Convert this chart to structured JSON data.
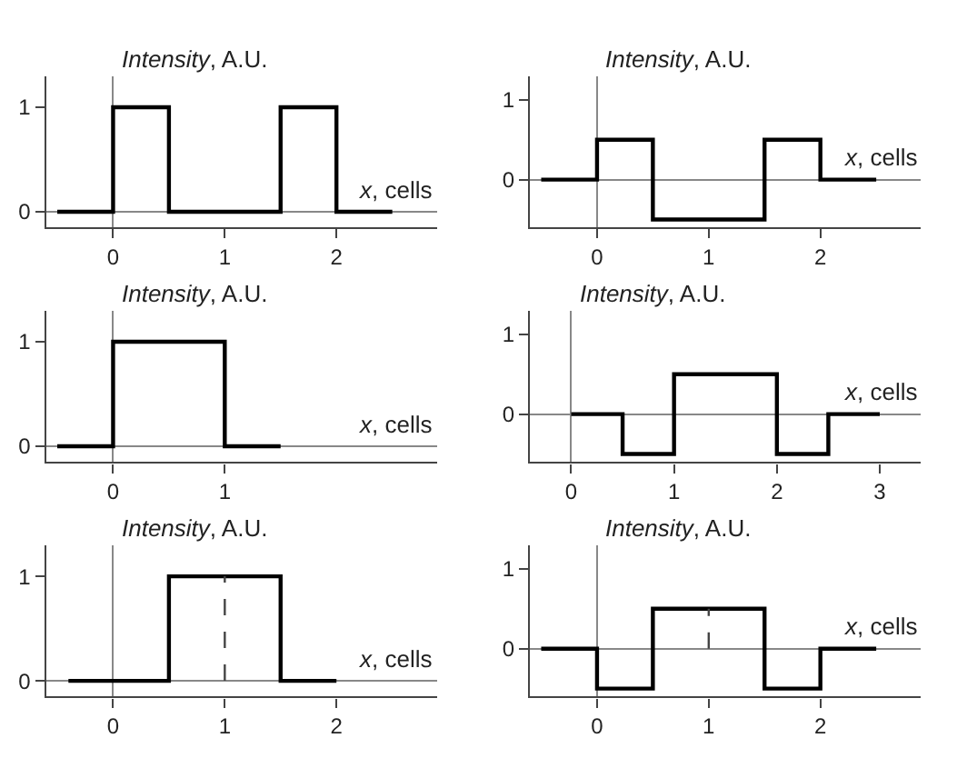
{
  "chart_data": [
    {
      "type": "step",
      "xlabel": "x, cells",
      "ylabel": "Intensity, A.U.",
      "x": [
        -0.5,
        0,
        0.5,
        1.5,
        2,
        2.5
      ],
      "values": [
        0,
        1,
        0,
        1,
        0,
        0
      ],
      "color": "#000000",
      "xlim": [
        -0.6,
        2.9
      ],
      "ylim": [
        -0.15,
        1.3
      ],
      "xticks": [
        0,
        1,
        2
      ],
      "yticks": [
        0,
        1
      ]
    },
    {
      "type": "step",
      "xlabel": "x, cells",
      "ylabel": "Intensity, A.U.",
      "x": [
        -0.5,
        0,
        0.5,
        1.5,
        2,
        2.5
      ],
      "values": [
        0,
        0.5,
        -0.5,
        0.5,
        0,
        0
      ],
      "color": "#000000",
      "xlim": [
        -0.6,
        2.9
      ],
      "ylim": [
        -0.6,
        1.3
      ],
      "xticks": [
        0,
        1,
        2
      ],
      "yticks": [
        0,
        1
      ]
    },
    {
      "type": "step",
      "xlabel": "x, cells",
      "ylabel": "Intensity, A.U.",
      "x": [
        -0.5,
        0,
        1,
        1.5
      ],
      "values": [
        0,
        1,
        0,
        0
      ],
      "color": "#000000",
      "xlim": [
        -0.6,
        2.9
      ],
      "ylim": [
        -0.15,
        1.3
      ],
      "xticks": [
        0,
        1
      ],
      "yticks": [
        0,
        1
      ]
    },
    {
      "type": "step",
      "xlabel": "x, cells",
      "ylabel": "Intensity, A.U.",
      "x": [
        0,
        0.5,
        1,
        2,
        2.5,
        3
      ],
      "values": [
        0,
        -0.5,
        0.5,
        -0.5,
        0,
        0
      ],
      "color": "#000000",
      "xlim": [
        -0.4,
        3.4
      ],
      "ylim": [
        -0.6,
        1.3
      ],
      "xticks": [
        0,
        1,
        2,
        3
      ],
      "yticks": [
        0,
        1
      ]
    },
    {
      "type": "step",
      "xlabel": "x, cells",
      "ylabel": "Intensity, A.U.",
      "x": [
        -0.4,
        0.5,
        1.5,
        2
      ],
      "values": [
        0,
        1,
        0,
        0
      ],
      "color": "#000000",
      "xlim": [
        -0.6,
        2.9
      ],
      "ylim": [
        -0.15,
        1.3
      ],
      "xticks": [
        0,
        1,
        2
      ],
      "yticks": [
        0,
        1
      ],
      "ref_lines": [
        {
          "axis": "x",
          "value": 1,
          "line_style": "dashed"
        }
      ]
    },
    {
      "type": "step",
      "xlabel": "x, cells",
      "ylabel": "Intensity, A.U.",
      "x": [
        -0.5,
        0,
        0.5,
        1.5,
        2,
        2.5
      ],
      "values": [
        0,
        -0.5,
        0.5,
        -0.5,
        0,
        0
      ],
      "color": "#000000",
      "xlim": [
        -0.6,
        2.9
      ],
      "ylim": [
        -0.6,
        1.3
      ],
      "xticks": [
        0,
        1,
        2
      ],
      "yticks": [
        0,
        1
      ],
      "ref_lines": [
        {
          "axis": "x",
          "value": 1,
          "line_style": "dashed"
        }
      ]
    }
  ]
}
